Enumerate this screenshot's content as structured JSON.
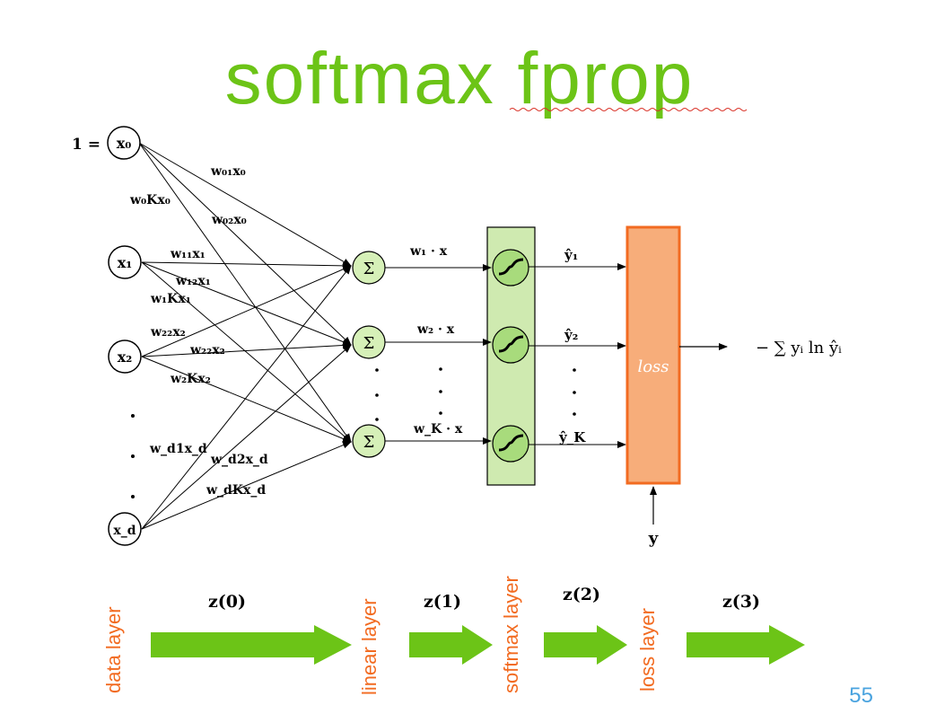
{
  "title": "softmax fprop",
  "page_number": "55",
  "colors": {
    "title": "#6cc417",
    "arrow": "#6cc417",
    "layer_label": "#f26b21",
    "node_fill": "#d6f0b8",
    "softmax_band": "#cfeab0",
    "loss_fill": "#f7ad7a",
    "loss_stroke": "#f26b21",
    "page_number": "#4aa3df"
  },
  "inputs": {
    "x0": "x₀",
    "x1": "x₁",
    "x2": "x₂",
    "xd": "x_d",
    "bias_prefix": "1 ="
  },
  "weights": {
    "w01": "w₀₁x₀",
    "w0K": "w₀Kx₀",
    "w02": "w₀₂x₀",
    "w11": "w₁₁x₁",
    "w12": "w₁₂x₁",
    "w1K": "w₁Kx₁",
    "w22a": "w₂₂x₂",
    "w22b": "w₂₂x₂",
    "w2K": "w₂Kx₂",
    "wd1": "w_d1x_d",
    "wd2": "w_d2x_d",
    "wdK": "w_dKx_d"
  },
  "linear_symbol": "Σ",
  "linear_outputs": {
    "o1": "w₁ · x",
    "o2": "w₂ · x",
    "oK": "w_K · x"
  },
  "softmax_outputs": {
    "y1": "ŷ₁",
    "y2": "ŷ₂",
    "yK": "ŷ_K"
  },
  "loss_label": "loss",
  "target_label": "y",
  "loss_formula": "− ∑ yᵢ ln ŷᵢ",
  "layers": {
    "data": "data layer",
    "linear": "linear layer",
    "softmax": "softmax layer",
    "loss": "loss layer"
  },
  "z_labels": {
    "z0": "z(0)",
    "z1": "z(1)",
    "z2": "z(2)",
    "z3": "z(3)"
  }
}
